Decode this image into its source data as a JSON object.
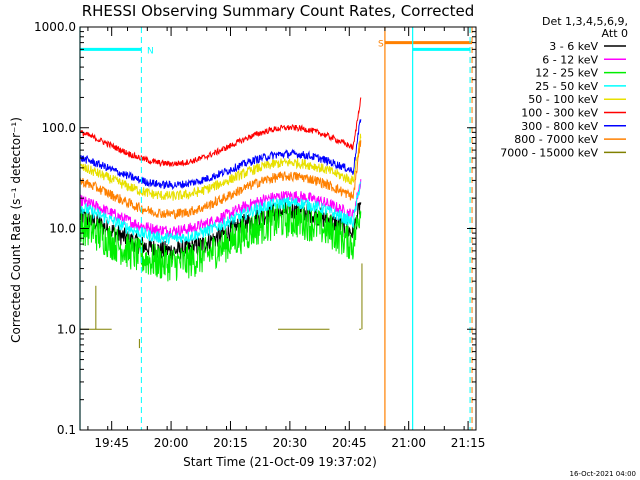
{
  "chart_data": {
    "type": "line",
    "title": "RHESSI Observing Summary Count Rates, Corrected",
    "xlabel": "Start Time (21-Oct-09 19:37:02)",
    "ylabel": "Corrected Count Rate (s⁻¹ detector⁻¹)",
    "y_scale": "log",
    "ylim": [
      0.1,
      1000
    ],
    "xlim_minutes_after_start": [
      0,
      100
    ],
    "x_ticks": [
      {
        "label": "19:45",
        "minute": 8
      },
      {
        "label": "20:00",
        "minute": 23
      },
      {
        "label": "20:15",
        "minute": 38
      },
      {
        "label": "20:30",
        "minute": 53
      },
      {
        "label": "20:45",
        "minute": 68
      },
      {
        "label": "21:00",
        "minute": 83
      },
      {
        "label": "21:15",
        "minute": 98
      }
    ],
    "y_ticks": [
      "0.1",
      "1.0",
      "10.0",
      "100.0",
      "1000.0"
    ],
    "legend_header": "Det 1,3,4,5,6,9,",
    "legend_header2": "Att 0",
    "legend_position": "top-right",
    "series": [
      {
        "name": "3 - 6 keV",
        "color": "#000000",
        "base": 15,
        "dip": 6,
        "noise": 0.1
      },
      {
        "name": "6 - 12 keV",
        "color": "#ff00ff",
        "base": 21,
        "dip": 9.5,
        "noise": 0.06
      },
      {
        "name": "12 - 25 keV",
        "color": "#00ee00",
        "base": 12,
        "dip": 4.5,
        "noise": 0.18
      },
      {
        "name": "25 - 50 keV",
        "color": "#00ffff",
        "base": 18,
        "dip": 8,
        "noise": 0.06
      },
      {
        "name": "50 - 100 keV",
        "color": "#e8e000",
        "base": 45,
        "dip": 21,
        "noise": 0.05
      },
      {
        "name": "100 - 300 keV",
        "color": "#ff0000",
        "base": 100,
        "dip": 44,
        "noise": 0.03
      },
      {
        "name": "300 - 800 keV",
        "color": "#0000ff",
        "base": 55,
        "dip": 27,
        "noise": 0.04
      },
      {
        "name": "800 - 7000 keV",
        "color": "#ff8000",
        "base": 33,
        "dip": 14,
        "noise": 0.05
      },
      {
        "name": "7000 - 15000 keV",
        "color": "#808000",
        "base": 1.0,
        "dip": 1.0,
        "noise": 0.0
      }
    ],
    "periods": [
      {
        "label": "N",
        "kind": "night",
        "color": "#00ffff",
        "start_minute": 0,
        "end_minute": 15.5,
        "level": 600
      },
      {
        "label": "S",
        "kind": "saa",
        "color": "#ff8000",
        "start_minute": 77,
        "end_minute": 99,
        "level": 700
      },
      {
        "label": "",
        "kind": "night",
        "color": "#00ffff",
        "start_minute": 84,
        "end_minute": 98.5,
        "level": 600
      }
    ],
    "grid": false
  },
  "footer": {
    "date": "16-Oct-2021 04:00"
  }
}
